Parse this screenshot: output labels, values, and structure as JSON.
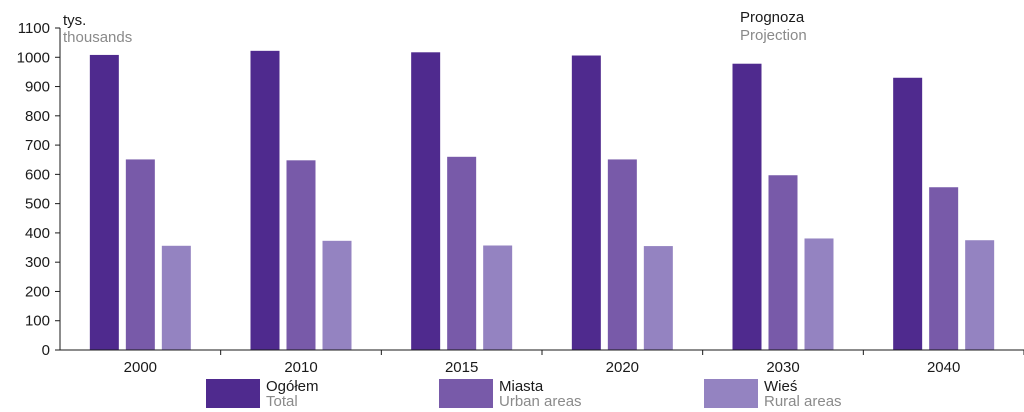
{
  "chart_data": {
    "type": "bar",
    "categories": [
      "2000",
      "2010",
      "2015",
      "2020",
      "2030",
      "2040"
    ],
    "series": [
      {
        "name": "Ogółem",
        "subname": "Total",
        "color": "#4f2a8e",
        "values": [
          1008,
          1022,
          1017,
          1006,
          978,
          930
        ]
      },
      {
        "name": "Miasta",
        "subname": "Urban areas",
        "color": "#785aa9",
        "values": [
          651,
          648,
          660,
          651,
          597,
          556
        ]
      },
      {
        "name": "Wieś",
        "subname": "Rural areas",
        "color": "#9483c1",
        "values": [
          356,
          373,
          357,
          355,
          381,
          375
        ]
      }
    ],
    "ylim": [
      0,
      1100
    ],
    "yticks": [
      0,
      100,
      200,
      300,
      400,
      500,
      600,
      700,
      800,
      900,
      1000,
      1100
    ],
    "ylabel": "tys.",
    "ylabel_sub": "thousands",
    "annotation": "Prognoza",
    "annotation_sub": "Projection",
    "grid": false,
    "legend_position": "bottom"
  }
}
